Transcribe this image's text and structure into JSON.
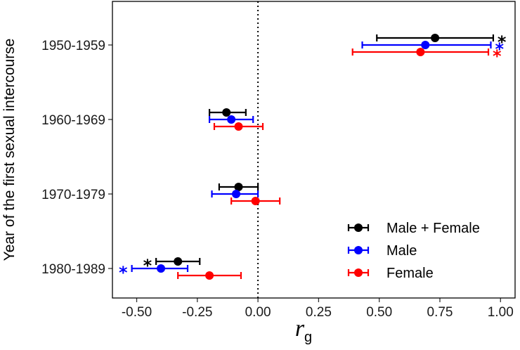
{
  "chart_data": {
    "type": "forest",
    "xlabel": "r",
    "xlabel_subscript": "g",
    "ylabel": "Year of the first sexual intercourse",
    "xlim": [
      -0.6,
      1.06
    ],
    "xticks": [
      -0.5,
      -0.25,
      0.0,
      0.25,
      0.5,
      0.75,
      1.0
    ],
    "xtick_labels": [
      "-0.50",
      "-0.25",
      "0.00",
      "0.25",
      "0.50",
      "0.75",
      "1.00"
    ],
    "reference_line": 0.0,
    "categories": [
      "1950-1959",
      "1960-1969",
      "1970-1979",
      "1980-1989"
    ],
    "series": [
      {
        "name": "Male + Female",
        "color": "#000000",
        "points": [
          {
            "category": "1950-1959",
            "estimate": 0.73,
            "lower": 0.49,
            "upper": 0.97,
            "significant": true
          },
          {
            "category": "1960-1969",
            "estimate": -0.13,
            "lower": -0.2,
            "upper": -0.05,
            "significant": false
          },
          {
            "category": "1970-1979",
            "estimate": -0.08,
            "lower": -0.16,
            "upper": 0.0,
            "significant": false
          },
          {
            "category": "1980-1989",
            "estimate": -0.33,
            "lower": -0.42,
            "upper": -0.24,
            "significant": true
          }
        ]
      },
      {
        "name": "Male",
        "color": "#0000ff",
        "points": [
          {
            "category": "1950-1959",
            "estimate": 0.69,
            "lower": 0.43,
            "upper": 0.96,
            "significant": true
          },
          {
            "category": "1960-1969",
            "estimate": -0.11,
            "lower": -0.2,
            "upper": -0.02,
            "significant": false
          },
          {
            "category": "1970-1979",
            "estimate": -0.09,
            "lower": -0.19,
            "upper": 0.0,
            "significant": false
          },
          {
            "category": "1980-1989",
            "estimate": -0.4,
            "lower": -0.52,
            "upper": -0.29,
            "significant": true
          }
        ]
      },
      {
        "name": "Female",
        "color": "#ff0000",
        "points": [
          {
            "category": "1950-1959",
            "estimate": 0.67,
            "lower": 0.39,
            "upper": 0.95,
            "significant": true
          },
          {
            "category": "1960-1969",
            "estimate": -0.08,
            "lower": -0.18,
            "upper": 0.02,
            "significant": false
          },
          {
            "category": "1970-1979",
            "estimate": -0.01,
            "lower": -0.11,
            "upper": 0.09,
            "significant": false
          },
          {
            "category": "1980-1989",
            "estimate": -0.2,
            "lower": -0.33,
            "upper": -0.07,
            "significant": false
          }
        ]
      }
    ],
    "significance_marker": "*",
    "legend": {
      "position": "bottom-right",
      "entries": [
        "Male + Female",
        "Male",
        "Female"
      ]
    }
  }
}
